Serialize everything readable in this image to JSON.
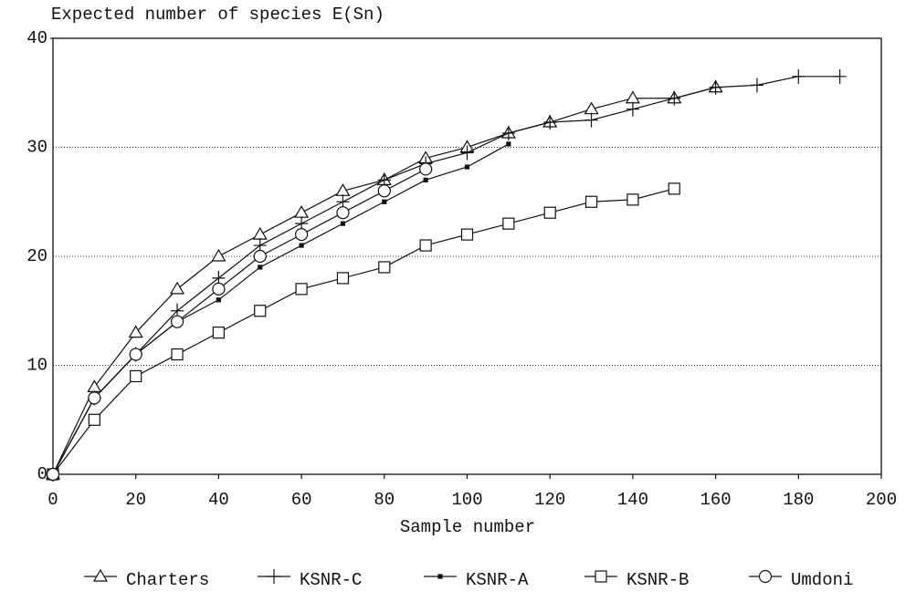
{
  "chart_data": {
    "type": "line",
    "y_label": "Expected number of species E(Sn)",
    "x_label": "Sample number",
    "xlim": [
      0,
      200
    ],
    "xticks": [
      0,
      20,
      40,
      60,
      80,
      100,
      120,
      140,
      160,
      180,
      200
    ],
    "ylim": [
      0,
      40
    ],
    "yticks": [
      0,
      10,
      20,
      30,
      40
    ],
    "grid": true,
    "legend": "bottom",
    "series": [
      {
        "name": "Charters",
        "color": "#111111",
        "marker": "triangle",
        "x": [
          0,
          10,
          20,
          30,
          40,
          50,
          60,
          70,
          80,
          90,
          100,
          110,
          120,
          130,
          140,
          150,
          160
        ],
        "values": [
          0,
          8,
          13,
          17,
          20,
          22,
          24,
          26,
          27,
          29,
          30,
          31.3,
          32.3,
          33.5,
          34.5,
          34.5,
          35.5
        ]
      },
      {
        "name": "KSNR-C",
        "color": "#111111",
        "marker": "plus",
        "x": [
          0,
          10,
          20,
          30,
          40,
          50,
          60,
          70,
          80,
          90,
          100,
          110,
          120,
          130,
          140,
          150,
          160,
          170,
          180,
          190
        ],
        "values": [
          0,
          7,
          11,
          15,
          18,
          21,
          23,
          25,
          27,
          28.5,
          29.5,
          31.3,
          32.3,
          32.5,
          33.5,
          34.5,
          35.5,
          35.7,
          36.5,
          36.5
        ]
      },
      {
        "name": "KSNR-A",
        "color": "#111111",
        "marker": "dot",
        "x": [
          0,
          10,
          20,
          30,
          40,
          50,
          60,
          70,
          80,
          90,
          100,
          110
        ],
        "values": [
          0,
          7,
          11,
          14,
          16,
          19,
          21,
          23,
          25,
          27,
          28.2,
          30.3
        ]
      },
      {
        "name": "KSNR-B",
        "color": "#111111",
        "marker": "square",
        "x": [
          0,
          10,
          20,
          30,
          40,
          50,
          60,
          70,
          80,
          90,
          100,
          110,
          120,
          130,
          140,
          150
        ],
        "values": [
          0,
          5,
          9,
          11,
          13,
          15,
          17,
          18,
          19,
          21,
          22,
          23,
          24,
          25,
          25.2,
          26.2
        ]
      },
      {
        "name": "Umdoni",
        "color": "#111111",
        "marker": "circle",
        "x": [
          0,
          10,
          20,
          30,
          40,
          50,
          60,
          70,
          80,
          90
        ],
        "values": [
          0,
          7,
          11,
          14,
          17,
          20,
          22,
          24,
          26,
          28
        ]
      }
    ]
  }
}
